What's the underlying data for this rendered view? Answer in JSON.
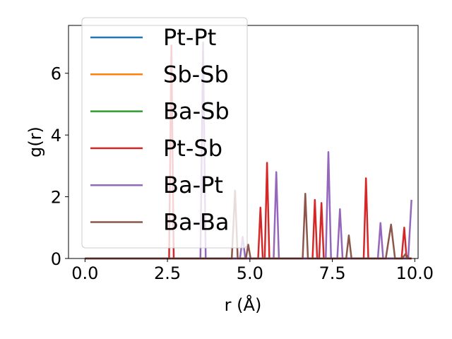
{
  "chart_data": {
    "type": "line",
    "title": "",
    "xlabel": "r (Å)",
    "ylabel": "g(r)",
    "xlim": [
      -0.5,
      10.1
    ],
    "ylim": [
      0,
      7.55
    ],
    "xticks": [
      0.0,
      2.5,
      5.0,
      7.5,
      10.0
    ],
    "xtick_labels": [
      "0.0",
      "2.5",
      "5.0",
      "7.5",
      "10.0"
    ],
    "yticks": [
      0,
      2,
      4,
      6
    ],
    "ytick_labels": [
      "0",
      "2",
      "4",
      "6"
    ],
    "grid": false,
    "legend_position": "top-left",
    "series": [
      {
        "name": "Pt-Pt",
        "color": "#1f77b4",
        "x": [
          0,
          9.9
        ],
        "y": [
          0,
          0
        ]
      },
      {
        "name": "Sb-Sb",
        "color": "#ff7f0e",
        "x": [
          0,
          9.9
        ],
        "y": [
          0,
          0
        ]
      },
      {
        "name": "Ba-Sb",
        "color": "#2ca02c",
        "x": [
          0,
          9.9
        ],
        "y": [
          0,
          0
        ]
      },
      {
        "name": "Pt-Sb",
        "color": "#d62728",
        "x": [
          0,
          2.55,
          2.62,
          2.69,
          5.25,
          5.32,
          5.39,
          5.45,
          5.52,
          5.59,
          6.9,
          6.97,
          7.04,
          7.1,
          7.17,
          7.24,
          8.45,
          8.52,
          8.59,
          9.6,
          9.68,
          9.75,
          9.9
        ],
        "y": [
          0,
          0,
          6.9,
          0,
          0,
          1.65,
          0,
          0,
          3.1,
          0,
          0,
          1.9,
          0,
          0,
          1.8,
          0,
          0,
          2.6,
          0,
          0,
          1.0,
          0,
          0
        ]
      },
      {
        "name": "Ba-Pt",
        "color": "#9467bd",
        "x": [
          0,
          3.5,
          3.58,
          3.66,
          4.7,
          4.78,
          4.86,
          5.72,
          5.8,
          5.88,
          7.3,
          7.38,
          7.46,
          7.65,
          7.73,
          7.81,
          8.88,
          8.96,
          9.04,
          9.8,
          9.9
        ],
        "y": [
          0,
          0,
          7.0,
          0,
          0,
          0.7,
          0,
          0,
          2.8,
          0,
          0,
          3.45,
          0,
          0,
          1.6,
          0,
          0,
          1.15,
          0,
          0,
          1.9
        ]
      },
      {
        "name": "Ba-Ba",
        "color": "#8c564b",
        "x": [
          0,
          4.45,
          4.55,
          4.63,
          4.88,
          4.95,
          5.02,
          6.6,
          6.68,
          6.76,
          7.92,
          8.0,
          8.08,
          9.12,
          9.28,
          9.4,
          9.62,
          9.72,
          9.82
        ],
        "y": [
          0,
          0,
          2.2,
          0,
          0,
          0.45,
          0,
          0,
          2.1,
          0,
          0,
          0.75,
          0,
          0,
          1.1,
          0,
          0,
          0.15,
          0
        ]
      }
    ]
  }
}
